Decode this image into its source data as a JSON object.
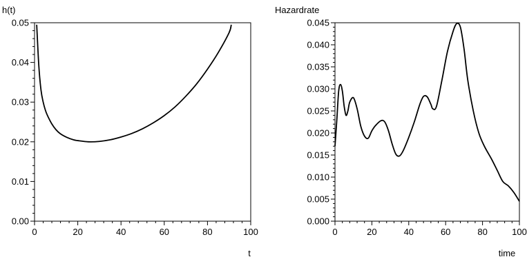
{
  "chart_data": [
    {
      "type": "line",
      "ylabel": "h(t)",
      "xlabel": "t",
      "xlim": [
        0,
        100
      ],
      "ylim": [
        0,
        0.05
      ],
      "x_ticks": [
        0,
        20,
        40,
        60,
        80,
        100
      ],
      "y_ticks": [
        0.0,
        0.01,
        0.02,
        0.03,
        0.04,
        0.05
      ],
      "x_tick_labels": [
        "0",
        "20",
        "40",
        "60",
        "80",
        "100"
      ],
      "y_tick_labels": [
        "0.00",
        "0.01",
        "0.02",
        "0.03",
        "0.04",
        "0.05"
      ],
      "grid": false,
      "series": [
        {
          "x": [
            1,
            2,
            3,
            4,
            5,
            6,
            8,
            10,
            12,
            15,
            18,
            20,
            25,
            30,
            35,
            40,
            45,
            50,
            55,
            60,
            65,
            70,
            75,
            80,
            85,
            90,
            91
          ],
          "y": [
            0.0495,
            0.039,
            0.033,
            0.03,
            0.028,
            0.0266,
            0.0245,
            0.023,
            0.022,
            0.0211,
            0.0205,
            0.0203,
            0.02,
            0.0201,
            0.0205,
            0.0212,
            0.0221,
            0.0233,
            0.0248,
            0.0266,
            0.0288,
            0.0315,
            0.0346,
            0.0383,
            0.0425,
            0.0475,
            0.0495
          ]
        }
      ]
    },
    {
      "type": "line",
      "ylabel": "Hazardrate",
      "xlabel": "time",
      "xlim": [
        0,
        100
      ],
      "ylim": [
        0,
        0.045
      ],
      "x_ticks": [
        0,
        20,
        40,
        60,
        80,
        100
      ],
      "y_ticks": [
        0.0,
        0.005,
        0.01,
        0.015,
        0.02,
        0.025,
        0.03,
        0.035,
        0.04,
        0.045
      ],
      "x_tick_labels": [
        "0",
        "20",
        "40",
        "60",
        "80",
        "100"
      ],
      "y_tick_labels": [
        "0.000",
        "0.005",
        "0.010",
        "0.015",
        "0.020",
        "0.025",
        "0.030",
        "0.035",
        "0.040",
        "0.045"
      ],
      "grid": false,
      "series": [
        {
          "x": [
            0,
            1,
            2,
            3,
            4,
            5,
            6,
            7,
            8,
            10,
            12,
            14,
            16,
            18,
            20,
            22,
            25,
            27,
            29,
            31,
            33,
            35,
            37,
            40,
            43,
            46,
            48,
            50,
            52,
            53,
            55,
            58,
            61,
            64,
            66,
            68,
            70,
            72,
            75,
            78,
            81,
            85,
            88,
            91,
            94,
            97,
            100
          ],
          "y": [
            0.017,
            0.023,
            0.0295,
            0.031,
            0.0295,
            0.026,
            0.024,
            0.025,
            0.027,
            0.028,
            0.0255,
            0.0215,
            0.0193,
            0.0188,
            0.0205,
            0.0217,
            0.0228,
            0.0225,
            0.0205,
            0.0175,
            0.0152,
            0.0148,
            0.016,
            0.019,
            0.0225,
            0.0265,
            0.0283,
            0.0282,
            0.0265,
            0.0255,
            0.026,
            0.032,
            0.0385,
            0.043,
            0.0448,
            0.044,
            0.039,
            0.032,
            0.025,
            0.02,
            0.017,
            0.014,
            0.0115,
            0.009,
            0.008,
            0.0065,
            0.0045
          ]
        }
      ]
    }
  ]
}
